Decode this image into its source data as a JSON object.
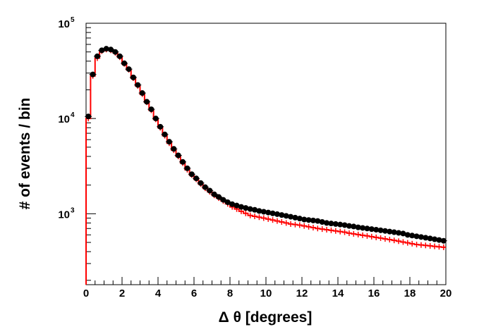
{
  "chart_data": {
    "type": "scatter",
    "xlabel": "Δ θ [degrees]",
    "ylabel": "# of events / bin",
    "xlim": [
      0,
      20
    ],
    "ylim": [
      180,
      100000
    ],
    "y_scale": "log",
    "grid": false,
    "x_ticks": [
      "0",
      "2",
      "4",
      "6",
      "8",
      "10",
      "12",
      "14",
      "16",
      "18",
      "20"
    ],
    "y_ticks": [
      {
        "value": 1000,
        "base": "10",
        "exp": "3"
      },
      {
        "value": 10000,
        "base": "10",
        "exp": "4"
      },
      {
        "value": 100000,
        "base": "10",
        "exp": "5"
      }
    ],
    "series": [
      {
        "style": "points",
        "color": "#000000",
        "x": [
          0.125,
          0.375,
          0.625,
          0.875,
          1.125,
          1.375,
          1.625,
          1.875,
          2.125,
          2.375,
          2.625,
          2.875,
          3.125,
          3.375,
          3.625,
          3.875,
          4.125,
          4.375,
          4.625,
          4.875,
          5.125,
          5.375,
          5.625,
          5.875,
          6.125,
          6.375,
          6.625,
          6.875,
          7.125,
          7.375,
          7.625,
          7.875,
          8.125,
          8.375,
          8.625,
          8.875,
          9.125,
          9.375,
          9.625,
          9.875,
          10.125,
          10.375,
          10.625,
          10.875,
          11.125,
          11.375,
          11.625,
          11.875,
          12.125,
          12.375,
          12.625,
          12.875,
          13.125,
          13.375,
          13.625,
          13.875,
          14.125,
          14.375,
          14.625,
          14.875,
          15.125,
          15.375,
          15.625,
          15.875,
          16.125,
          16.375,
          16.625,
          16.875,
          17.125,
          17.375,
          17.625,
          17.875,
          18.125,
          18.375,
          18.625,
          18.875,
          19.125,
          19.375,
          19.625,
          19.875
        ],
        "y": [
          10500,
          29000,
          45000,
          52000,
          54000,
          53000,
          50000,
          45000,
          38000,
          33000,
          27000,
          22500,
          18500,
          15000,
          12500,
          10000,
          8200,
          6800,
          5700,
          4800,
          4100,
          3500,
          3000,
          2600,
          2350,
          2100,
          1900,
          1750,
          1600,
          1500,
          1400,
          1320,
          1260,
          1220,
          1180,
          1150,
          1120,
          1100,
          1070,
          1050,
          1030,
          1010,
          990,
          970,
          950,
          930,
          910,
          890,
          870,
          860,
          850,
          840,
          820,
          800,
          790,
          780,
          770,
          760,
          745,
          735,
          720,
          710,
          700,
          690,
          680,
          670,
          660,
          650,
          640,
          630,
          620,
          600,
          590,
          580,
          570,
          560,
          550,
          540,
          530,
          520
        ]
      },
      {
        "style": "step",
        "color": "#ff0000",
        "x": [
          0.125,
          0.375,
          0.625,
          0.875,
          1.125,
          1.375,
          1.625,
          1.875,
          2.125,
          2.375,
          2.625,
          2.875,
          3.125,
          3.375,
          3.625,
          3.875,
          4.125,
          4.375,
          4.625,
          4.875,
          5.125,
          5.375,
          5.625,
          5.875,
          6.125,
          6.375,
          6.625,
          6.875,
          7.125,
          7.375,
          7.625,
          7.875,
          8.125,
          8.375,
          8.625,
          8.875,
          9.125,
          9.375,
          9.625,
          9.875,
          10.125,
          10.375,
          10.625,
          10.875,
          11.125,
          11.375,
          11.625,
          11.875,
          12.125,
          12.375,
          12.625,
          12.875,
          13.125,
          13.375,
          13.625,
          13.875,
          14.125,
          14.375,
          14.625,
          14.875,
          15.125,
          15.375,
          15.625,
          15.875,
          16.125,
          16.375,
          16.625,
          16.875,
          17.125,
          17.375,
          17.625,
          17.875,
          18.125,
          18.375,
          18.625,
          18.875,
          19.125,
          19.375,
          19.625,
          19.875
        ],
        "y": [
          10000,
          28000,
          43000,
          51000,
          53000,
          52000,
          49000,
          44000,
          37500,
          32500,
          26500,
          22000,
          18000,
          14800,
          12200,
          9800,
          8000,
          6600,
          5500,
          4650,
          4000,
          3400,
          2900,
          2550,
          2300,
          2050,
          1850,
          1700,
          1560,
          1460,
          1360,
          1270,
          1180,
          1120,
          1060,
          1010,
          960,
          940,
          920,
          900,
          880,
          860,
          840,
          820,
          800,
          780,
          770,
          760,
          745,
          730,
          715,
          700,
          690,
          680,
          670,
          660,
          650,
          640,
          625,
          615,
          605,
          595,
          585,
          575,
          565,
          555,
          545,
          535,
          525,
          515,
          505,
          495,
          485,
          475,
          470,
          465,
          460,
          455,
          450,
          445
        ]
      }
    ]
  }
}
